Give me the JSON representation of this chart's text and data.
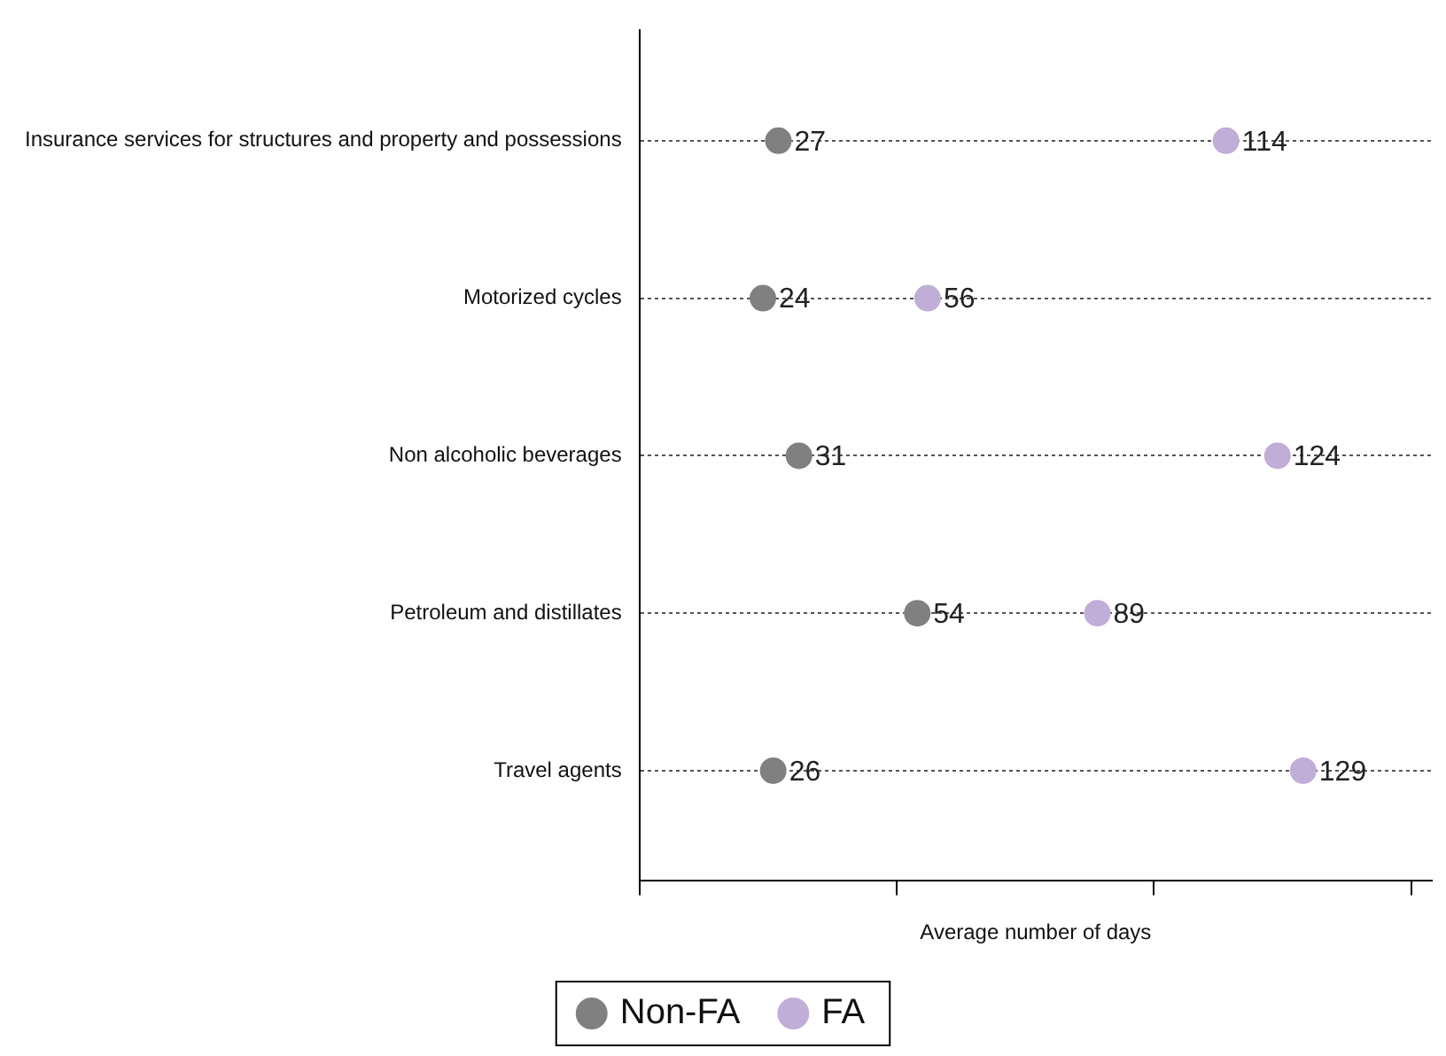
{
  "chart_data": {
    "type": "scatter",
    "orientation": "horizontal",
    "xlabel": "Average number of days",
    "categories": [
      "Insurance services for structures and property and possessions",
      "Motorized cycles",
      "Non alcoholic beverages",
      "Petroleum and distillates",
      "Travel agents"
    ],
    "series": [
      {
        "name": "Non-FA",
        "color": "#808080",
        "values": [
          27,
          24,
          31,
          54,
          26
        ]
      },
      {
        "name": "FA",
        "color": "#c0aed8",
        "values": [
          114,
          56,
          124,
          89,
          129
        ]
      }
    ],
    "xlim": [
      0,
      154
    ],
    "xticks": [
      {
        "value": 0,
        "label": null
      },
      {
        "value": 50,
        "label": null
      },
      {
        "value": 100,
        "label": null
      },
      {
        "value": 150,
        "label": null
      }
    ],
    "grid": "y",
    "line_style": "dotted",
    "marker": "circle",
    "data_labels": true,
    "legend": "bottom"
  }
}
